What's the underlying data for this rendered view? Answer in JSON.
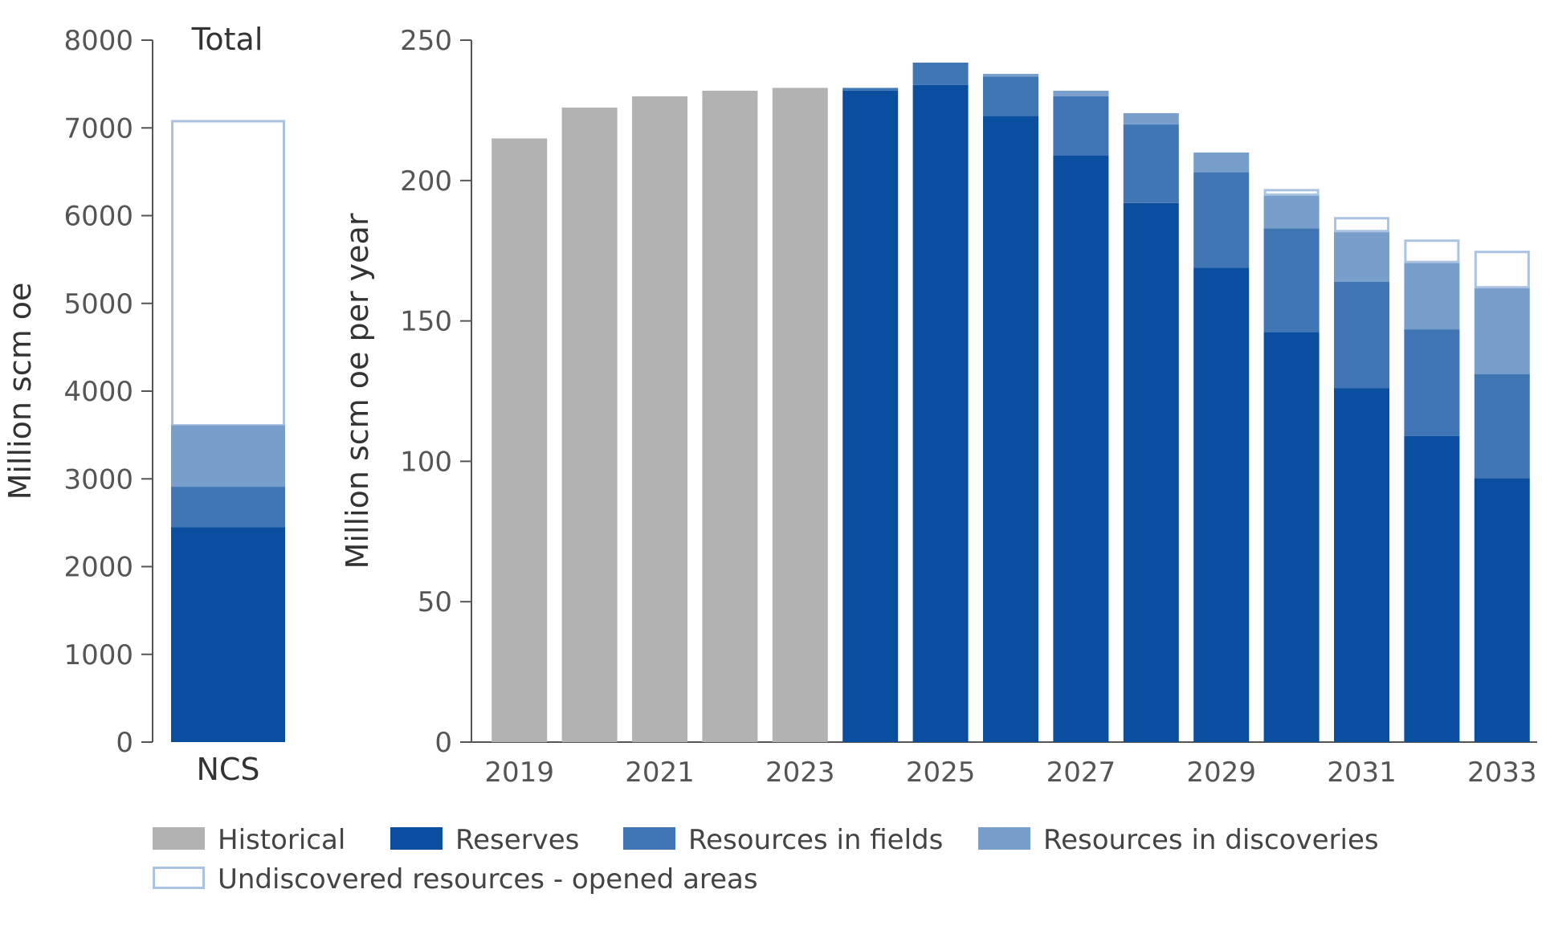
{
  "chart_data": [
    {
      "type": "bar",
      "stacked": true,
      "title": "Total",
      "categories": [
        "NCS"
      ],
      "ylabel": "Million scm oe",
      "ylim": [
        0,
        8000
      ],
      "yticks": [
        0,
        1000,
        2000,
        3000,
        4000,
        5000,
        6000,
        7000,
        8000
      ],
      "grid": false,
      "series": [
        {
          "name": "Reserves",
          "values": [
            2450
          ]
        },
        {
          "name": "Resources in fields",
          "values": [
            460
          ]
        },
        {
          "name": "Resources in discoveries",
          "values": [
            700
          ]
        },
        {
          "name": "Undiscovered resources - opened areas",
          "values": [
            3480
          ]
        }
      ]
    },
    {
      "type": "bar",
      "stacked": true,
      "categories": [
        "2019",
        "2020",
        "2021",
        "2022",
        "2023",
        "2024",
        "2025",
        "2026",
        "2027",
        "2028",
        "2029",
        "2030",
        "2031",
        "2032",
        "2033"
      ],
      "xtick_labels": [
        "2019",
        "",
        "2021",
        "",
        "2023",
        "",
        "2025",
        "",
        "2027",
        "",
        "2029",
        "",
        "2031",
        "",
        "2033"
      ],
      "ylabel": "Million scm oe per year",
      "ylim": [
        0,
        250
      ],
      "yticks": [
        0,
        50,
        100,
        150,
        200,
        250
      ],
      "grid": false,
      "series": [
        {
          "name": "Historical",
          "values": [
            215,
            226,
            230,
            232,
            233,
            0,
            0,
            0,
            0,
            0,
            0,
            0,
            0,
            0,
            0
          ]
        },
        {
          "name": "Reserves",
          "values": [
            0,
            0,
            0,
            0,
            0,
            232,
            234,
            223,
            209,
            192,
            169,
            146,
            126,
            109,
            94
          ]
        },
        {
          "name": "Resources in fields",
          "values": [
            0,
            0,
            0,
            0,
            0,
            1,
            8,
            14,
            21,
            28,
            34,
            37,
            38,
            38,
            37
          ]
        },
        {
          "name": "Resources in discoveries",
          "values": [
            0,
            0,
            0,
            0,
            0,
            0,
            0,
            1,
            2,
            4,
            7,
            12,
            18,
            24,
            31
          ]
        },
        {
          "name": "Undiscovered resources - opened areas",
          "values": [
            0,
            0,
            0,
            0,
            0,
            0,
            0,
            0,
            0,
            0,
            0,
            2,
            5,
            8,
            13
          ]
        }
      ]
    }
  ],
  "legend": {
    "placement": "bottom",
    "items": [
      {
        "label": "Historical",
        "color": "#b2b2b2",
        "outline": false
      },
      {
        "label": "Reserves",
        "color": "#094e9f",
        "outline": false
      },
      {
        "label": "Resources in fields",
        "color": "#4176b5",
        "outline": false
      },
      {
        "label": "Resources in discoveries",
        "color": "#789ecb",
        "outline": false
      },
      {
        "label": "Undiscovered resources - opened areas",
        "color": "#a9c3e0",
        "outline": true
      }
    ]
  },
  "colors": {
    "Historical": "#b2b2b2",
    "Reserves": "#094e9f",
    "Resources in fields": "#4176b5",
    "Resources in discoveries": "#789ecb",
    "Undiscovered resources - opened areas": "#a9c3e0",
    "axis": "#555555"
  }
}
